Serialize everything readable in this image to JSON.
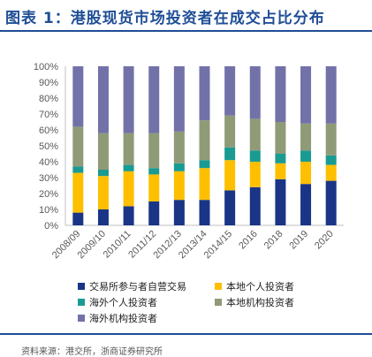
{
  "title": "图表 1：港股现货市场投资者在成交占比分布",
  "source": "资料来源：港交所，浙商证券研究所",
  "colors": {
    "title": "#1f4e96",
    "series": [
      "#1a3586",
      "#fdbf00",
      "#1a9b92",
      "#8f9a77",
      "#7272a9"
    ]
  },
  "chart_data": {
    "type": "bar",
    "stacked": true,
    "categories": [
      "2008/09",
      "2009/10",
      "2010/11",
      "2011/12",
      "2012/13",
      "2013/14",
      "2014/15",
      "2016",
      "2018",
      "2019",
      "2020"
    ],
    "ylim": [
      0,
      100
    ],
    "yticks": [
      "0%",
      "10%",
      "20%",
      "30%",
      "40%",
      "50%",
      "60%",
      "70%",
      "80%",
      "90%",
      "100%"
    ],
    "grid": false,
    "legend_position": "bottom",
    "series": [
      {
        "name": "交易所参与者自营交易",
        "values": [
          8,
          10,
          12,
          15,
          16,
          16,
          22,
          24,
          29,
          26,
          28
        ]
      },
      {
        "name": "本地个人投资者",
        "values": [
          25,
          21,
          22,
          17,
          18,
          20,
          19,
          16,
          10,
          14,
          10
        ]
      },
      {
        "name": "海外个人投资者",
        "values": [
          4,
          4,
          4,
          4,
          5,
          5,
          8,
          7,
          6,
          7,
          6
        ]
      },
      {
        "name": "本地机构投资者",
        "values": [
          25,
          23,
          20,
          22,
          20,
          25,
          20,
          20,
          20,
          17,
          20
        ]
      },
      {
        "name": "海外机构投资者",
        "values": [
          38,
          42,
          42,
          42,
          41,
          34,
          31,
          33,
          35,
          36,
          36
        ]
      }
    ]
  }
}
